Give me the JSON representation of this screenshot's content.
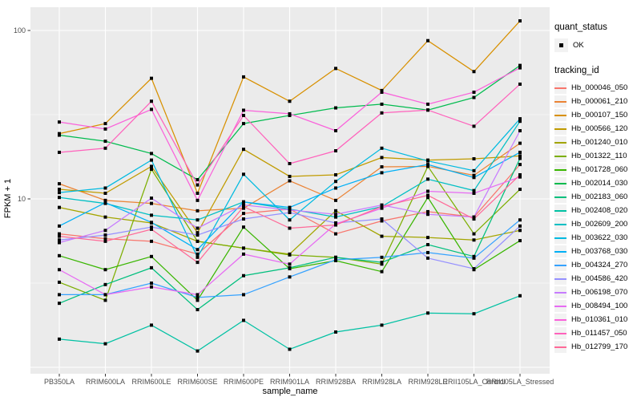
{
  "figure": {
    "background": "#FFFFFF",
    "panel_background": "#EBEBEB",
    "gridline_color": "#FFFFFF",
    "axis_text_color": "#4D4D4D",
    "tick_color": "#333333",
    "point_color": "#000000"
  },
  "legend": {
    "quant_status_title": "quant_status",
    "quant_status_items": [
      {
        "label": "OK",
        "marker": "black-square"
      }
    ],
    "tracking_id_title": "tracking_id"
  },
  "chart_data": {
    "type": "line",
    "title": "",
    "xlabel": "sample_name",
    "ylabel": "FPKM + 1",
    "y_scale": "log10",
    "y_ticks": [
      10,
      100
    ],
    "y_tick_labels": [
      "10",
      "100"
    ],
    "y_gridlines_major": [
      1,
      10,
      100
    ],
    "y_gridlines_minor": [
      3.162,
      31.62
    ],
    "ylim": [
      0.92,
      137
    ],
    "grid": true,
    "legend_position": "right",
    "point_marker": "filled-black-square",
    "categories": [
      "PB350LA",
      "RRIM600LA",
      "RRIM600LE",
      "RRIM600SE",
      "RRIM600PE",
      "RRIM901LA",
      "RRIM928BA",
      "RRIM928LA",
      "RRIM928LE",
      "RRII105LA_Control",
      "RRII105LA_Stressed"
    ],
    "series": [
      {
        "name": "Hb_000046_050",
        "color": "#F8766D",
        "values": [
          6.2,
          5.8,
          5.6,
          4.7,
          8.2,
          8.7,
          6.2,
          7.4,
          8.4,
          7.8,
          16.0
        ]
      },
      {
        "name": "Hb_000061_210",
        "color": "#EB8335",
        "values": [
          12.3,
          9.8,
          9.4,
          8.5,
          8.8,
          12.8,
          9.8,
          15.5,
          15.6,
          13.8,
          21.4
        ]
      },
      {
        "name": "Hb_000107_150",
        "color": "#D89000",
        "values": [
          24.4,
          28.0,
          52.0,
          10.8,
          53.0,
          38.0,
          59.5,
          44.0,
          87.0,
          57.0,
          114.0
        ]
      },
      {
        "name": "Hb_000566_120",
        "color": "#C09B00",
        "values": [
          11.4,
          10.8,
          15.6,
          6.3,
          19.7,
          13.6,
          13.9,
          17.6,
          17.0,
          17.3,
          18.0
        ]
      },
      {
        "name": "Hb_001240_010",
        "color": "#A3A500",
        "values": [
          8.9,
          7.8,
          7.2,
          5.6,
          5.1,
          4.7,
          8.5,
          6.0,
          5.9,
          5.7,
          6.5
        ]
      },
      {
        "name": "Hb_001322_110",
        "color": "#7CAE00",
        "values": [
          3.2,
          2.5,
          15.0,
          5.6,
          5.1,
          4.65,
          4.5,
          4.1,
          15.6,
          6.2,
          11.4
        ]
      },
      {
        "name": "Hb_001728_060",
        "color": "#39B600",
        "values": [
          4.6,
          3.8,
          4.55,
          2.5,
          6.8,
          3.85,
          4.3,
          3.7,
          10.2,
          3.8,
          5.65
        ]
      },
      {
        "name": "Hb_002014_030",
        "color": "#00BB4E",
        "values": [
          23.9,
          22.0,
          18.6,
          13.0,
          28.0,
          31.3,
          34.7,
          36.5,
          33.7,
          40.0,
          62.0
        ]
      },
      {
        "name": "Hb_002183_060",
        "color": "#00BF7D",
        "values": [
          2.4,
          3.1,
          3.9,
          2.2,
          3.5,
          3.9,
          4.5,
          4.2,
          5.35,
          4.55,
          17.4
        ]
      },
      {
        "name": "Hb_002408_020",
        "color": "#00C1A3",
        "values": [
          1.47,
          1.38,
          1.78,
          1.25,
          1.9,
          1.28,
          1.62,
          1.78,
          2.1,
          2.08,
          2.66
        ]
      },
      {
        "name": "Hb_002609_200",
        "color": "#00BFC4",
        "values": [
          10.2,
          9.4,
          8.0,
          7.5,
          9.6,
          8.7,
          7.8,
          9.0,
          13.1,
          11.2,
          28.9
        ]
      },
      {
        "name": "Hb_003622_030",
        "color": "#00BAE0",
        "values": [
          10.9,
          11.6,
          17.0,
          4.5,
          14.0,
          7.5,
          12.7,
          20.0,
          16.8,
          14.7,
          29.9
        ]
      },
      {
        "name": "Hb_003768_030",
        "color": "#00B0F6",
        "values": [
          6.9,
          9.5,
          7.25,
          5.0,
          9.6,
          8.9,
          11.6,
          14.3,
          16.0,
          13.4,
          18.9
        ]
      },
      {
        "name": "Hb_004324_270",
        "color": "#35A2FF",
        "values": [
          2.7,
          2.7,
          3.16,
          2.6,
          2.7,
          3.44,
          4.35,
          4.5,
          4.8,
          4.45,
          7.5
        ]
      },
      {
        "name": "Hb_004586_420",
        "color": "#9590FF",
        "values": [
          5.7,
          6.1,
          6.8,
          6.1,
          7.6,
          8.3,
          7.2,
          7.6,
          4.45,
          3.85,
          6.9
        ]
      },
      {
        "name": "Hb_006198_070",
        "color": "#C77CFF",
        "values": [
          5.5,
          6.5,
          10.1,
          6.7,
          9.2,
          8.6,
          8.1,
          9.2,
          8.1,
          7.8,
          25.4
        ]
      },
      {
        "name": "Hb_008494_100",
        "color": "#E76BF3",
        "values": [
          3.8,
          2.7,
          3.0,
          2.7,
          4.7,
          4.1,
          7.1,
          8.8,
          11.1,
          10.8,
          13.5
        ]
      },
      {
        "name": "Hb_010361_010",
        "color": "#FA62DB",
        "values": [
          28.6,
          26.0,
          34.0,
          9.8,
          33.6,
          32.0,
          25.4,
          43.0,
          36.5,
          43.0,
          60.0
        ]
      },
      {
        "name": "Hb_011457_050",
        "color": "#FF62BC",
        "values": [
          18.9,
          20.0,
          38.0,
          12.1,
          31.3,
          16.2,
          19.3,
          32.4,
          33.7,
          27.0,
          48.0
        ]
      },
      {
        "name": "Hb_012799_170",
        "color": "#FF6A98",
        "values": [
          6.0,
          5.6,
          6.6,
          4.2,
          9.0,
          6.7,
          7.0,
          9.0,
          10.5,
          7.6,
          13.9
        ]
      }
    ]
  }
}
